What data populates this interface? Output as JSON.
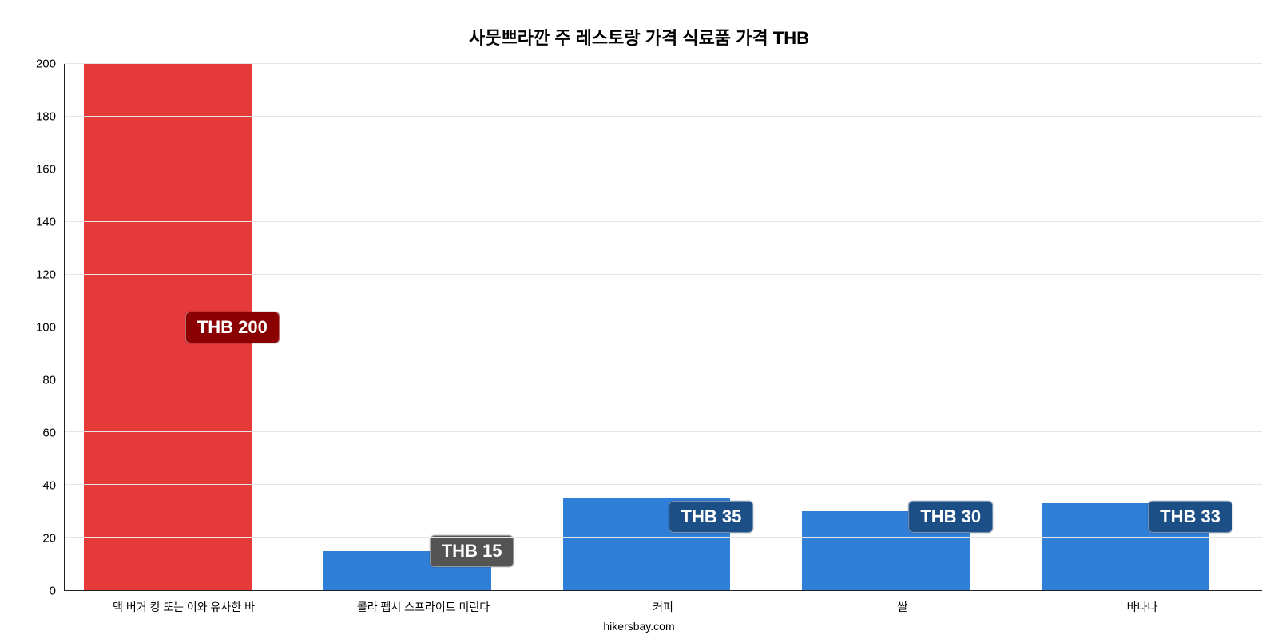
{
  "chart": {
    "type": "bar",
    "title": "사뭇쁘라깐 주 레스토랑 가격 식료품 가격 THB",
    "title_fontsize": 22,
    "background_color": "#ffffff",
    "grid_color": "#e6e6e6",
    "axis_color": "#222222",
    "label_color": "#000000",
    "tick_fontsize": 15,
    "xlabel_fontsize": 14,
    "badge_fontsize": 22,
    "footer": "hikersbay.com",
    "footer_fontsize": 14,
    "ylim": [
      0,
      200
    ],
    "yticks": [
      0,
      20,
      40,
      60,
      80,
      100,
      120,
      140,
      160,
      180,
      200
    ],
    "bar_width_pct": 70,
    "bar_offset_pct": 8,
    "categories": [
      "맥 버거 킹 또는 이와 유사한 바",
      "콜라 펩시 스프라이트 미린다",
      "커피",
      "쌀",
      "바나나"
    ],
    "values": [
      200,
      15,
      35,
      30,
      33
    ],
    "value_labels": [
      "THB 200",
      "THB 15",
      "THB 35",
      "THB 30",
      "THB 33"
    ],
    "bar_colors": [
      "#e63939",
      "#2f7ed8",
      "#2f7ed8",
      "#2f7ed8",
      "#2f7ed8"
    ],
    "badge_colors": [
      "#8b0000",
      "#545454",
      "#1d4f87",
      "#1d4f87",
      "#1d4f87"
    ],
    "badge_positions_y": [
      100,
      15,
      28,
      28,
      28
    ]
  }
}
